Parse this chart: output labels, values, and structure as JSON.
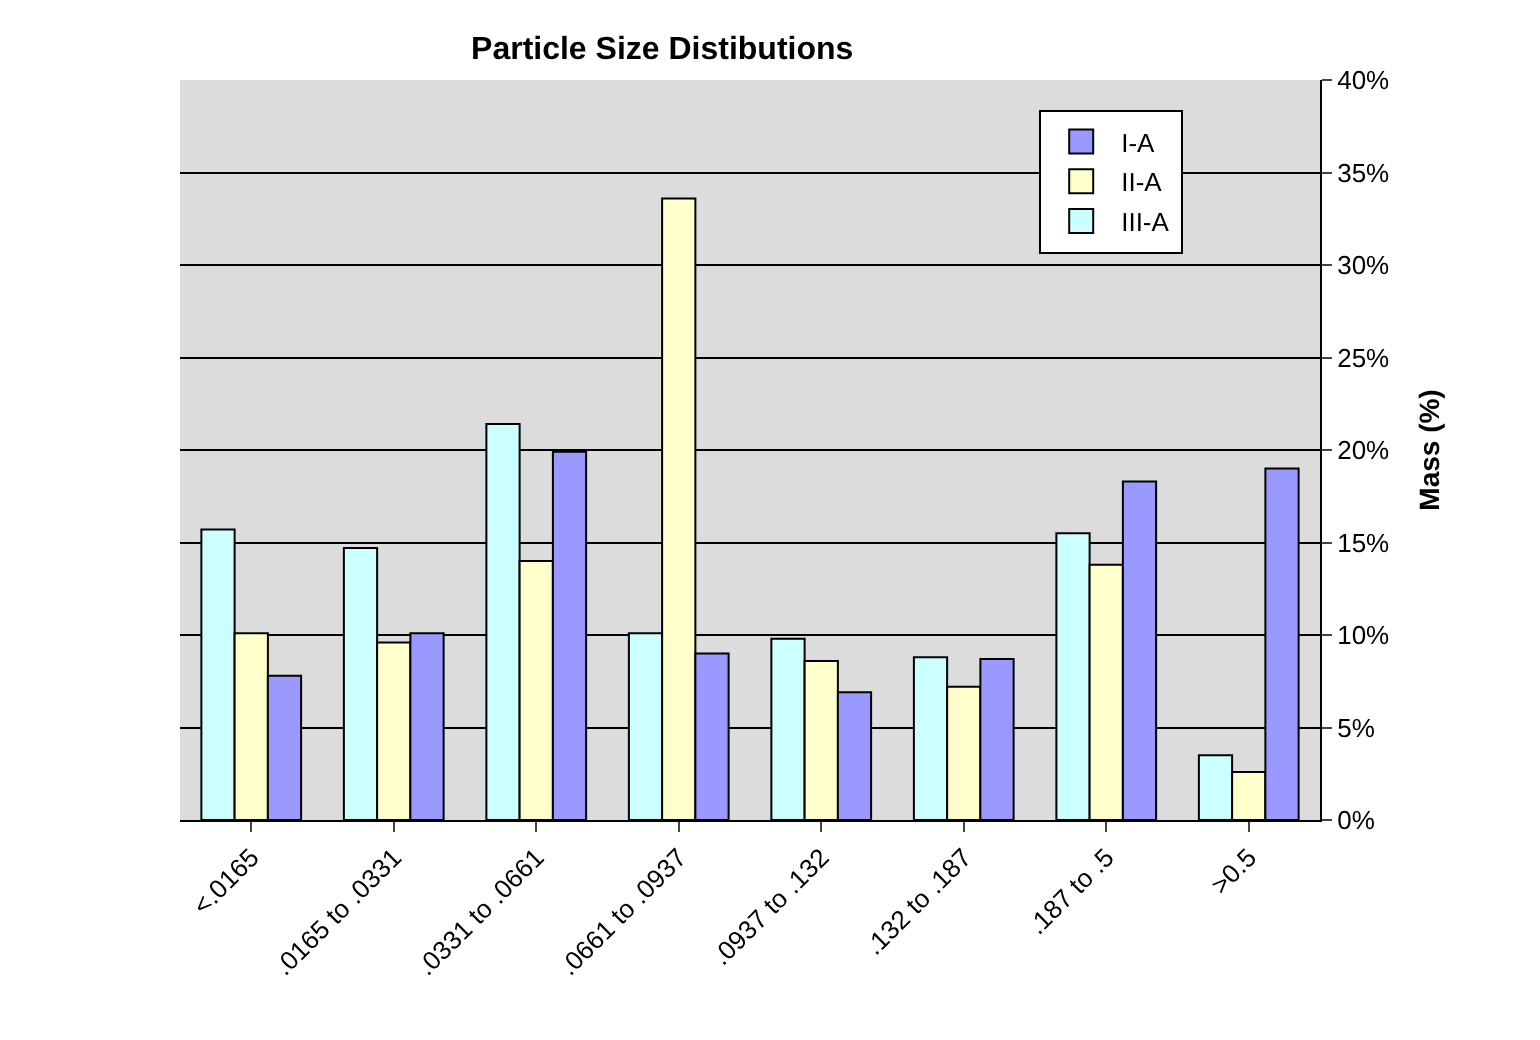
{
  "chart_data": {
    "type": "bar",
    "title": "Particle Size Distibutions",
    "ylabel": "Mass (%)",
    "categories": [
      "<.0165",
      ".0165 to .0331",
      ".0331 to .0661",
      ".0661 to .0937",
      ".0937 to .132",
      ".132 to .187",
      ".187 to .5",
      ">0.5"
    ],
    "series": [
      {
        "name": "III-A",
        "color": "#ccffff",
        "values": [
          15.7,
          14.7,
          21.4,
          10.1,
          9.8,
          8.8,
          15.5,
          3.5
        ]
      },
      {
        "name": "II-A",
        "color": "#ffffcc",
        "values": [
          10.1,
          9.6,
          14.0,
          33.6,
          8.6,
          7.2,
          13.8,
          2.6
        ]
      },
      {
        "name": "I-A",
        "color": "#9999ff",
        "values": [
          7.8,
          10.1,
          19.9,
          9.0,
          6.9,
          8.7,
          18.3,
          19.0
        ]
      }
    ],
    "ylim": [
      0,
      40
    ],
    "yticks": [
      {
        "value": 0,
        "label": "0%"
      },
      {
        "value": 5,
        "label": "5%"
      },
      {
        "value": 10,
        "label": "10%"
      },
      {
        "value": 15,
        "label": "15%"
      },
      {
        "value": 20,
        "label": "20%"
      },
      {
        "value": 25,
        "label": "25%"
      },
      {
        "value": 30,
        "label": "30%"
      },
      {
        "value": 35,
        "label": "35%"
      },
      {
        "value": 40,
        "label": "40%"
      }
    ],
    "grid": "y",
    "legend": "top right"
  }
}
